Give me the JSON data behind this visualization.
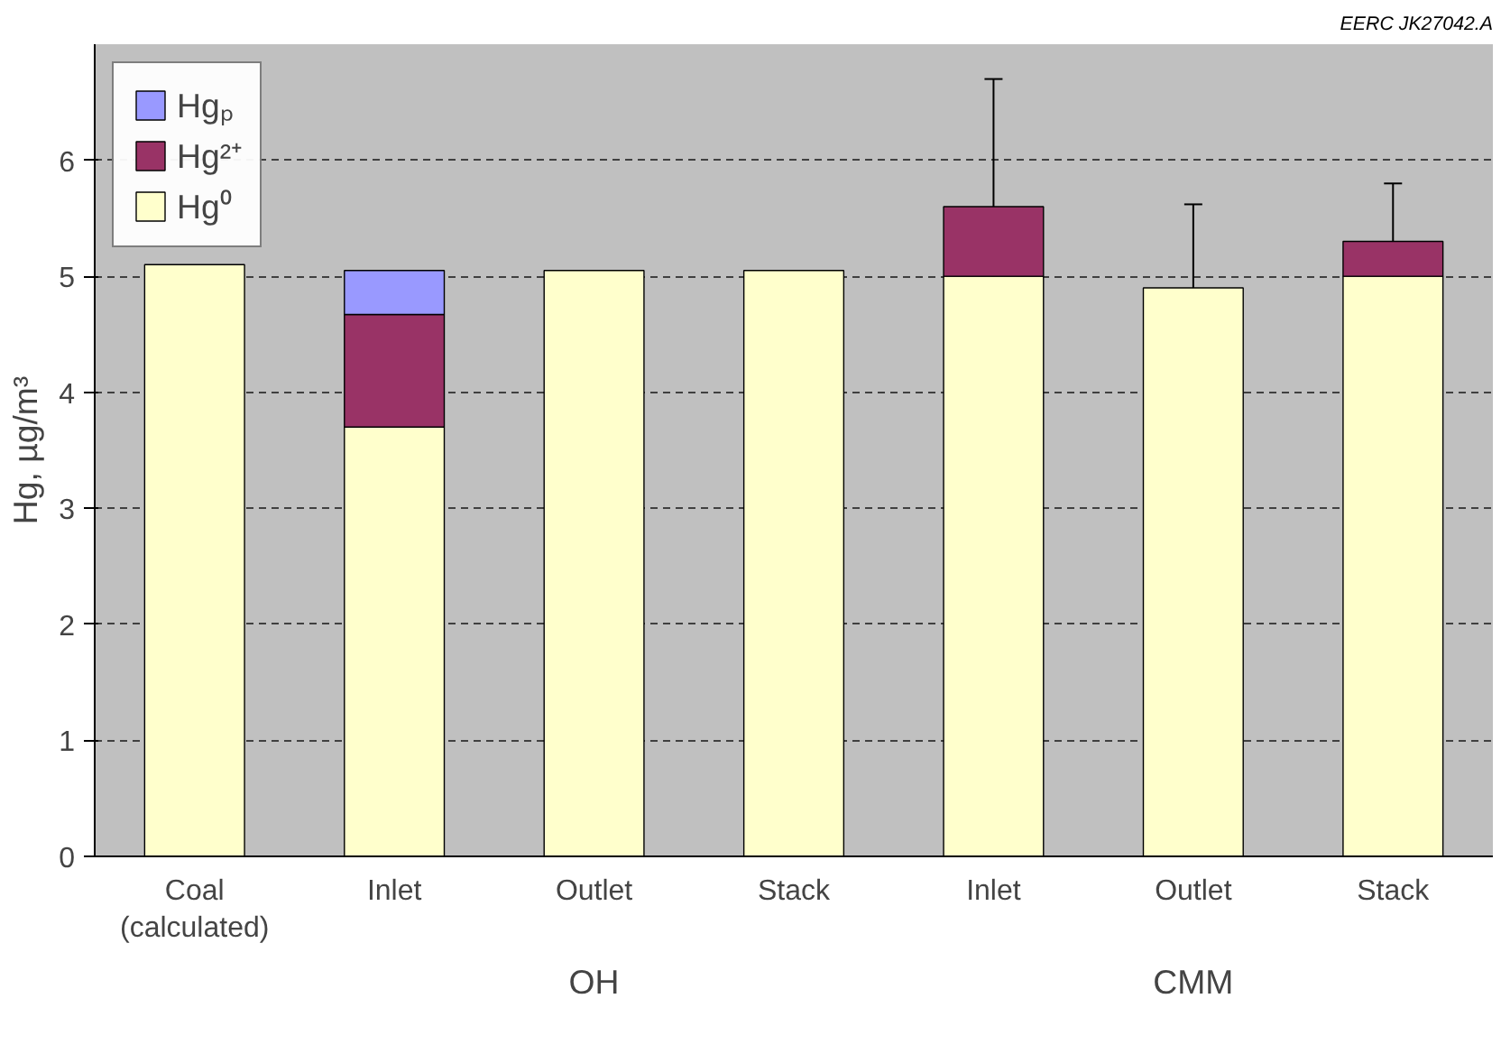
{
  "chart_data": {
    "type": "bar",
    "stacked": true,
    "ylabel": "Hg, µg/m³",
    "categories": [
      "Coal\n(calculated)",
      "Inlet",
      "Outlet",
      "Stack",
      "Inlet",
      "Outlet",
      "Stack"
    ],
    "series": [
      {
        "name": "Hg⁰",
        "color": "#ffffcc",
        "values": [
          5.1,
          3.7,
          5.05,
          5.05,
          5.0,
          4.9,
          5.0
        ],
        "errors": [
          null,
          null,
          null,
          null,
          null,
          0.72,
          null
        ]
      },
      {
        "name": "Hg²⁺",
        "color": "#993366",
        "values": [
          null,
          0.97,
          null,
          null,
          0.6,
          null,
          0.3
        ],
        "errors": [
          null,
          null,
          null,
          null,
          1.1,
          null,
          0.5
        ]
      },
      {
        "name": "Hgₚ",
        "color": "#9999ff",
        "values": [
          null,
          0.38,
          null,
          null,
          null,
          null,
          null
        ]
      }
    ],
    "ylim": [
      0,
      7
    ],
    "yticks": [
      0,
      1,
      2,
      3,
      4,
      5,
      6
    ],
    "grid": "y",
    "legend": "top left",
    "annotations": [
      "EERC JK27042.A",
      "OH",
      "CMM"
    ]
  }
}
